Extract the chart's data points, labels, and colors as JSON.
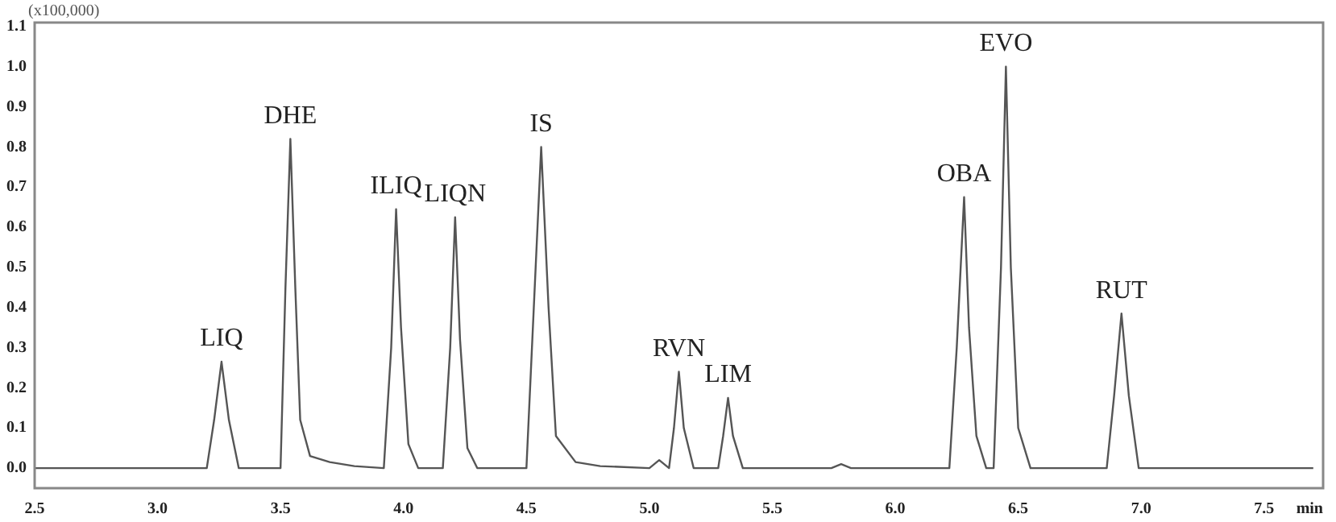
{
  "chart_data": {
    "type": "line",
    "xlabel": "min",
    "x": [
      2.5,
      3.2,
      3.23,
      3.26,
      3.29,
      3.33,
      3.5,
      3.52,
      3.54,
      3.56,
      3.58,
      3.62,
      3.7,
      3.8,
      3.92,
      3.95,
      3.97,
      3.99,
      4.02,
      4.06,
      4.16,
      4.19,
      4.21,
      4.23,
      4.26,
      4.3,
      4.5,
      4.53,
      4.56,
      4.59,
      4.62,
      4.7,
      4.8,
      5.0,
      5.04,
      5.08,
      5.1,
      5.12,
      5.14,
      5.18,
      5.28,
      5.3,
      5.32,
      5.34,
      5.38,
      5.74,
      5.78,
      5.82,
      6.22,
      6.25,
      6.28,
      6.3,
      6.33,
      6.37,
      6.4,
      6.43,
      6.45,
      6.47,
      6.5,
      6.55,
      6.86,
      6.89,
      6.92,
      6.95,
      6.99,
      7.7
    ],
    "series": [
      {
        "color": "#555555",
        "values": [
          0,
          0,
          0.12,
          0.265,
          0.12,
          0,
          0,
          0.45,
          0.82,
          0.45,
          0.12,
          0.03,
          0.015,
          0.005,
          0,
          0.3,
          0.645,
          0.35,
          0.06,
          0,
          0,
          0.3,
          0.625,
          0.32,
          0.05,
          0,
          0,
          0.4,
          0.8,
          0.4,
          0.08,
          0.015,
          0.005,
          0,
          0.02,
          0,
          0.1,
          0.24,
          0.1,
          0,
          0,
          0.08,
          0.175,
          0.08,
          0,
          0,
          0.01,
          0,
          0,
          0.3,
          0.675,
          0.35,
          0.08,
          0,
          0,
          0.5,
          1.0,
          0.5,
          0.1,
          0,
          0,
          0.18,
          0.385,
          0.18,
          0,
          0
        ]
      }
    ],
    "annotations": [
      "(x100,000)",
      {
        "text": "LIQ",
        "x": 3.26,
        "y": 0.265
      },
      {
        "text": "DHE",
        "x": 3.54,
        "y": 0.82
      },
      {
        "text": "ILIQ",
        "x": 3.97,
        "y": 0.645
      },
      {
        "text": "LIQN",
        "x": 4.21,
        "y": 0.625
      },
      {
        "text": "IS",
        "x": 4.56,
        "y": 0.8
      },
      {
        "text": "RVN",
        "x": 5.12,
        "y": 0.24
      },
      {
        "text": "LIM",
        "x": 5.32,
        "y": 0.175
      },
      {
        "text": "OBA",
        "x": 6.28,
        "y": 0.675
      },
      {
        "text": "EVO",
        "x": 6.45,
        "y": 1.0
      },
      {
        "text": "RUT",
        "x": 6.92,
        "y": 0.385
      }
    ],
    "xlim": [
      2.5,
      7.74
    ],
    "xticks": [
      {
        "value": 2.5,
        "label": "2.5"
      },
      {
        "value": 3,
        "label": "3.0"
      },
      {
        "value": 3.5,
        "label": "3.5"
      },
      {
        "value": 4,
        "label": "4.0"
      },
      {
        "value": 4.5,
        "label": "4.5"
      },
      {
        "value": 5,
        "label": "5.0"
      },
      {
        "value": 5.5,
        "label": "5.5"
      },
      {
        "value": 6,
        "label": "6.0"
      },
      {
        "value": 6.5,
        "label": "6.5"
      },
      {
        "value": 7,
        "label": "7.0"
      },
      {
        "value": 7.5,
        "label": "7.5"
      }
    ],
    "ylim": [
      -0.05,
      1.11
    ],
    "yticks": [
      {
        "value": 0,
        "label": "0.0"
      },
      {
        "value": 0.1,
        "label": "0.1"
      },
      {
        "value": 0.2,
        "label": "0.2"
      },
      {
        "value": 0.3,
        "label": "0.3"
      },
      {
        "value": 0.4,
        "label": "0.4"
      },
      {
        "value": 0.5,
        "label": "0.5"
      },
      {
        "value": 0.6,
        "label": "0.6"
      },
      {
        "value": 0.7,
        "label": "0.7"
      },
      {
        "value": 0.8,
        "label": "0.8"
      },
      {
        "value": 0.9,
        "label": "0.9"
      },
      {
        "value": 1,
        "label": "1.0"
      },
      {
        "value": 1.1,
        "label": "1.1"
      }
    ],
    "grid": false,
    "legend": false,
    "marker": "none",
    "line_style": "solid"
  }
}
